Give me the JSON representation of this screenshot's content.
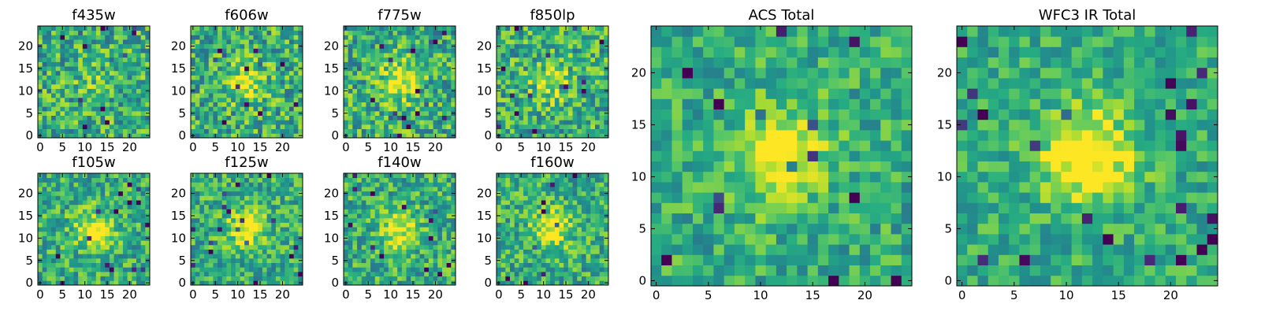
{
  "chart_data": [
    {
      "type": "heatmap",
      "title": "f435w",
      "xlim": [
        0,
        24
      ],
      "ylim": [
        0,
        24
      ],
      "x_ticks": [
        0,
        5,
        10,
        15,
        20
      ],
      "y_ticks": [
        0,
        5,
        10,
        15,
        20
      ],
      "colormap": "viridis",
      "center_brightness": 0.1,
      "noise": 0.28,
      "seed": 11
    },
    {
      "type": "heatmap",
      "title": "f606w",
      "xlim": [
        0,
        24
      ],
      "ylim": [
        0,
        24
      ],
      "x_ticks": [
        0,
        5,
        10,
        15,
        20
      ],
      "y_ticks": [
        0,
        5,
        10,
        15,
        20
      ],
      "colormap": "viridis",
      "center_brightness": 0.35,
      "noise": 0.28,
      "seed": 12
    },
    {
      "type": "heatmap",
      "title": "f775w",
      "xlim": [
        0,
        24
      ],
      "ylim": [
        0,
        24
      ],
      "x_ticks": [
        0,
        5,
        10,
        15,
        20
      ],
      "y_ticks": [
        0,
        5,
        10,
        15,
        20
      ],
      "colormap": "viridis",
      "center_brightness": 0.4,
      "noise": 0.28,
      "seed": 13
    },
    {
      "type": "heatmap",
      "title": "f850lp",
      "xlim": [
        0,
        24
      ],
      "ylim": [
        0,
        24
      ],
      "x_ticks": [
        0,
        5,
        10,
        15,
        20
      ],
      "y_ticks": [
        0,
        5,
        10,
        15,
        20
      ],
      "colormap": "viridis",
      "center_brightness": 0.3,
      "noise": 0.28,
      "seed": 14
    },
    {
      "type": "heatmap",
      "title": "f105w",
      "xlim": [
        0,
        24
      ],
      "ylim": [
        0,
        24
      ],
      "x_ticks": [
        0,
        5,
        10,
        15,
        20
      ],
      "y_ticks": [
        0,
        5,
        10,
        15,
        20
      ],
      "colormap": "viridis",
      "center_brightness": 0.4,
      "noise": 0.24,
      "seed": 15
    },
    {
      "type": "heatmap",
      "title": "f125w",
      "xlim": [
        0,
        24
      ],
      "ylim": [
        0,
        24
      ],
      "x_ticks": [
        0,
        5,
        10,
        15,
        20
      ],
      "y_ticks": [
        0,
        5,
        10,
        15,
        20
      ],
      "colormap": "viridis",
      "center_brightness": 0.4,
      "noise": 0.24,
      "seed": 16
    },
    {
      "type": "heatmap",
      "title": "f140w",
      "xlim": [
        0,
        24
      ],
      "ylim": [
        0,
        24
      ],
      "x_ticks": [
        0,
        5,
        10,
        15,
        20
      ],
      "y_ticks": [
        0,
        5,
        10,
        15,
        20
      ],
      "colormap": "viridis",
      "center_brightness": 0.35,
      "noise": 0.24,
      "seed": 17
    },
    {
      "type": "heatmap",
      "title": "f160w",
      "xlim": [
        0,
        24
      ],
      "ylim": [
        0,
        24
      ],
      "x_ticks": [
        0,
        5,
        10,
        15,
        20
      ],
      "y_ticks": [
        0,
        5,
        10,
        15,
        20
      ],
      "colormap": "viridis",
      "center_brightness": 0.4,
      "noise": 0.24,
      "seed": 18
    },
    {
      "type": "heatmap",
      "title": "ACS Total",
      "xlim": [
        0,
        24
      ],
      "ylim": [
        0,
        24
      ],
      "x_ticks": [
        0,
        5,
        10,
        15,
        20
      ],
      "y_ticks": [
        0,
        5,
        10,
        15,
        20
      ],
      "colormap": "viridis",
      "center_brightness": 0.5,
      "noise": 0.2,
      "seed": 21
    },
    {
      "type": "heatmap",
      "title": "WFC3 IR Total",
      "xlim": [
        0,
        24
      ],
      "ylim": [
        0,
        24
      ],
      "x_ticks": [
        0,
        5,
        10,
        15,
        20
      ],
      "y_ticks": [
        0,
        5,
        10,
        15,
        20
      ],
      "colormap": "viridis",
      "center_brightness": 0.55,
      "noise": 0.18,
      "seed": 22
    }
  ]
}
